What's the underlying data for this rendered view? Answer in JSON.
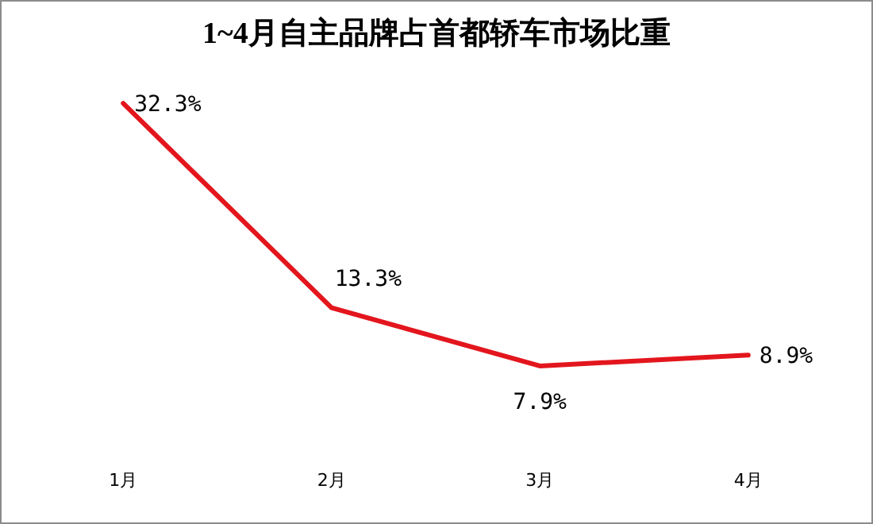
{
  "chart_data": {
    "type": "line",
    "title": "1~4月自主品牌占首都轿车市场比重",
    "categories": [
      "1月",
      "2月",
      "3月",
      "4月"
    ],
    "values": [
      32.3,
      13.3,
      7.9,
      8.9
    ],
    "value_labels": [
      "32.3%",
      "13.3%",
      "7.9%",
      "8.9%"
    ],
    "color": "#e3161d",
    "marker": "none",
    "line_style": "solid"
  }
}
